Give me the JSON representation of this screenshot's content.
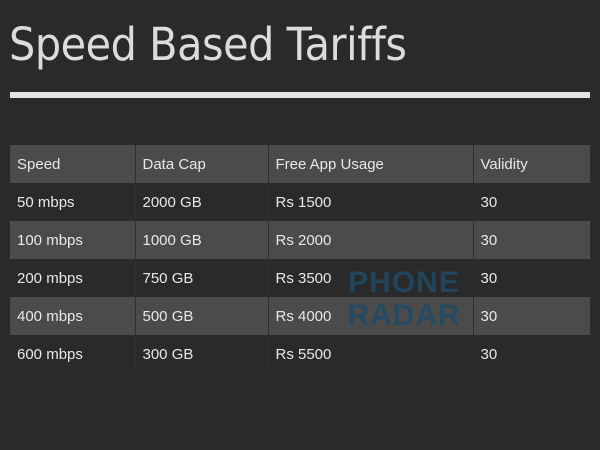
{
  "title": "Speed Based Tariffs",
  "table": {
    "headers": [
      "Speed",
      "Data Cap",
      "Free App Usage",
      "Validity"
    ],
    "rows": [
      [
        "50 mbps",
        "2000 GB",
        "Rs 1500",
        "30"
      ],
      [
        "100 mbps",
        "1000 GB",
        "Rs 2000",
        "30"
      ],
      [
        "200 mbps",
        "750 GB",
        "Rs 3500",
        "30"
      ],
      [
        "400 mbps",
        "500 GB",
        "Rs 4000",
        "30"
      ],
      [
        "600 mbps",
        "300 GB",
        "Rs 5500",
        "30"
      ]
    ]
  },
  "watermark": {
    "line1": "PHONE",
    "line2": "RADAR",
    "color": "#1f4a66"
  },
  "colors": {
    "background": "#2a2a2a",
    "shaded_row": "#4b4b4b",
    "text": "#e8e8e8"
  }
}
